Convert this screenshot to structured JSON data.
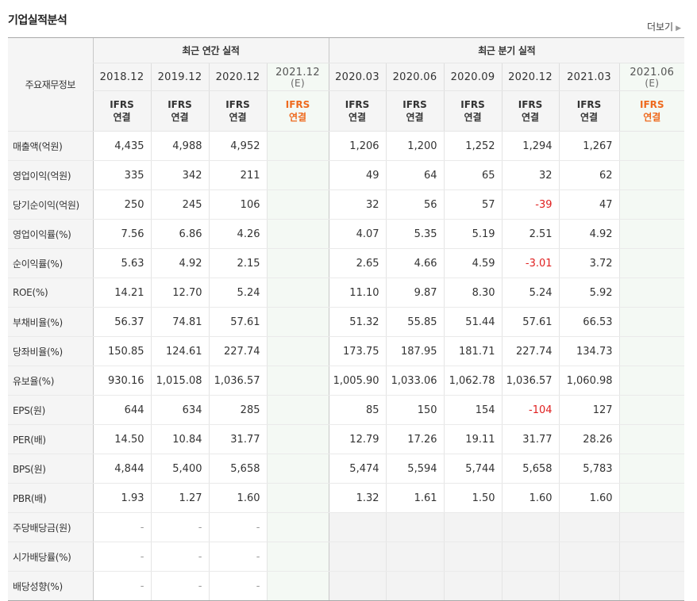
{
  "title": "기업실적분석",
  "more_label": "더보기",
  "row_header": "주요재무정보",
  "groups": {
    "annual": "최근 연간 실적",
    "quarter": "최근 분기 실적"
  },
  "periods": [
    {
      "label": "2018.12",
      "est": ""
    },
    {
      "label": "2019.12",
      "est": ""
    },
    {
      "label": "2020.12",
      "est": ""
    },
    {
      "label": "2021.12",
      "est": "(E)"
    },
    {
      "label": "2020.03",
      "est": ""
    },
    {
      "label": "2020.06",
      "est": ""
    },
    {
      "label": "2020.09",
      "est": ""
    },
    {
      "label": "2020.12",
      "est": ""
    },
    {
      "label": "2021.03",
      "est": ""
    },
    {
      "label": "2021.06",
      "est": "(E)"
    }
  ],
  "types": [
    "IFRS",
    "연결"
  ],
  "rows": [
    {
      "label": "매출액(억원)",
      "values": [
        "4,435",
        "4,988",
        "4,952",
        "",
        "1,206",
        "1,200",
        "1,252",
        "1,294",
        "1,267",
        ""
      ]
    },
    {
      "label": "영업이익(억원)",
      "values": [
        "335",
        "342",
        "211",
        "",
        "49",
        "64",
        "65",
        "32",
        "62",
        ""
      ]
    },
    {
      "label": "당기순이익(억원)",
      "values": [
        "250",
        "245",
        "106",
        "",
        "32",
        "56",
        "57",
        "-39",
        "47",
        ""
      ]
    },
    {
      "label": "영업이익률(%)",
      "values": [
        "7.56",
        "6.86",
        "4.26",
        "",
        "4.07",
        "5.35",
        "5.19",
        "2.51",
        "4.92",
        ""
      ]
    },
    {
      "label": "순이익률(%)",
      "values": [
        "5.63",
        "4.92",
        "2.15",
        "",
        "2.65",
        "4.66",
        "4.59",
        "-3.01",
        "3.72",
        ""
      ]
    },
    {
      "label": "ROE(%)",
      "values": [
        "14.21",
        "12.70",
        "5.24",
        "",
        "11.10",
        "9.87",
        "8.30",
        "5.24",
        "5.92",
        ""
      ]
    },
    {
      "label": "부채비율(%)",
      "values": [
        "56.37",
        "74.81",
        "57.61",
        "",
        "51.32",
        "55.85",
        "51.44",
        "57.61",
        "66.53",
        ""
      ]
    },
    {
      "label": "당좌비율(%)",
      "values": [
        "150.85",
        "124.61",
        "227.74",
        "",
        "173.75",
        "187.95",
        "181.71",
        "227.74",
        "134.73",
        ""
      ]
    },
    {
      "label": "유보율(%)",
      "values": [
        "930.16",
        "1,015.08",
        "1,036.57",
        "",
        "1,005.90",
        "1,033.06",
        "1,062.78",
        "1,036.57",
        "1,060.98",
        ""
      ]
    },
    {
      "label": "EPS(원)",
      "values": [
        "644",
        "634",
        "285",
        "",
        "85",
        "150",
        "154",
        "-104",
        "127",
        ""
      ]
    },
    {
      "label": "PER(배)",
      "values": [
        "14.50",
        "10.84",
        "31.77",
        "",
        "12.79",
        "17.26",
        "19.11",
        "31.77",
        "28.26",
        ""
      ]
    },
    {
      "label": "BPS(원)",
      "values": [
        "4,844",
        "5,400",
        "5,658",
        "",
        "5,474",
        "5,594",
        "5,744",
        "5,658",
        "5,783",
        ""
      ]
    },
    {
      "label": "PBR(배)",
      "values": [
        "1.93",
        "1.27",
        "1.60",
        "",
        "1.32",
        "1.61",
        "1.50",
        "1.60",
        "1.60",
        ""
      ]
    },
    {
      "label": "주당배당금(원)",
      "values": [
        "-",
        "-",
        "-",
        "",
        "",
        "",
        "",
        "",
        "",
        ""
      ]
    },
    {
      "label": "시가배당률(%)",
      "values": [
        "-",
        "-",
        "-",
        "",
        "",
        "",
        "",
        "",
        "",
        ""
      ]
    },
    {
      "label": "배당성향(%)",
      "values": [
        "-",
        "-",
        "-",
        "",
        "",
        "",
        "",
        "",
        "",
        ""
      ]
    }
  ],
  "colors": {
    "accent": "#ee6a1e",
    "negative": "#e02020",
    "estimate_bg": "#f4f9f4"
  }
}
